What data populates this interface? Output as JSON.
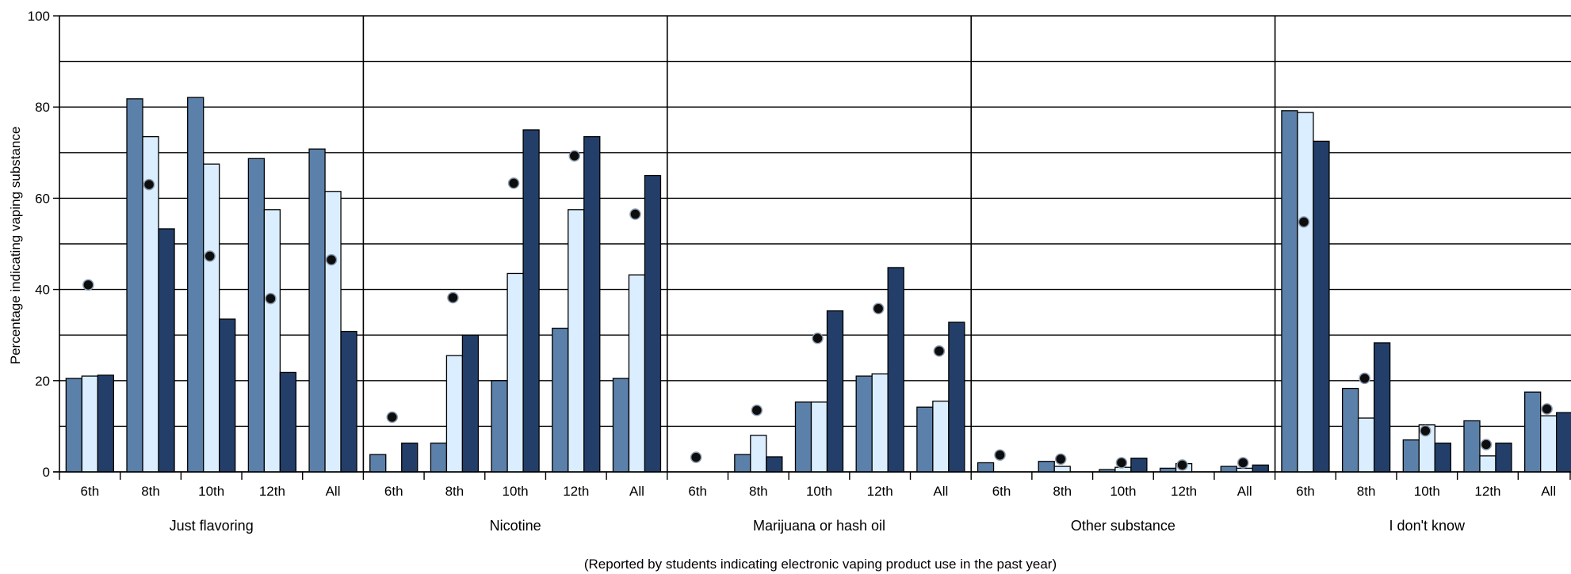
{
  "chart_data": {
    "type": "bar",
    "ylabel": "Percentage indicating vaping substance",
    "xlabel": "(Reported by students indicating electronic vaping product use in the past year)",
    "ylim": [
      0,
      100
    ],
    "yticks": [
      0,
      20,
      40,
      60,
      80,
      100
    ],
    "grid": true,
    "grades": [
      "6th",
      "8th",
      "10th",
      "12th",
      "All"
    ],
    "groups": [
      {
        "name": "Just flavoring",
        "bars": [
          [
            20.5,
            21,
            21.2
          ],
          [
            81.8,
            73.5,
            53.3
          ],
          [
            82.1,
            67.5,
            33.5
          ],
          [
            68.7,
            57.5,
            21.8
          ],
          [
            70.8,
            61.5,
            30.8
          ]
        ],
        "dots": [
          41,
          63,
          47.3,
          38,
          46.5
        ]
      },
      {
        "name": "Nicotine",
        "bars": [
          [
            3.8,
            0,
            6.3
          ],
          [
            6.3,
            25.5,
            30
          ],
          [
            20,
            43.5,
            75
          ],
          [
            31.5,
            57.5,
            73.5
          ],
          [
            20.5,
            43.2,
            65
          ]
        ],
        "dots": [
          12,
          38.2,
          63.3,
          69.3,
          56.5
        ]
      },
      {
        "name": "Marijuana or hash oil",
        "bars": [
          [
            0,
            0,
            0
          ],
          [
            3.8,
            8,
            3.3
          ],
          [
            15.3,
            15.3,
            35.3
          ],
          [
            21,
            21.5,
            44.8
          ],
          [
            14.2,
            15.5,
            32.8
          ]
        ],
        "dots": [
          3.2,
          13.5,
          29.3,
          35.8,
          26.5
        ]
      },
      {
        "name": "Other substance",
        "bars": [
          [
            2,
            0,
            0
          ],
          [
            2.3,
            1.2,
            0
          ],
          [
            0.5,
            1,
            3
          ],
          [
            0.8,
            1.8,
            0
          ],
          [
            1.2,
            0.8,
            1.5
          ]
        ],
        "dots": [
          3.7,
          2.8,
          2,
          1.5,
          2
        ]
      },
      {
        "name": "I don't know",
        "bars": [
          [
            79.2,
            78.8,
            72.5
          ],
          [
            18.3,
            11.8,
            28.3
          ],
          [
            7,
            10.3,
            6.3
          ],
          [
            11.2,
            3.5,
            6.3
          ],
          [
            17.5,
            12.3,
            13
          ]
        ],
        "dots": [
          54.8,
          20.5,
          9,
          6,
          13.8
        ]
      }
    ],
    "colors": {
      "bar1": "#5b80aa",
      "bar2": "#dbeeff",
      "bar3": "#233f69",
      "dot": "#0d0d0d",
      "dot_stroke": "#8a9bb0",
      "grid": "#000000",
      "bar_stroke": "#000000"
    }
  }
}
